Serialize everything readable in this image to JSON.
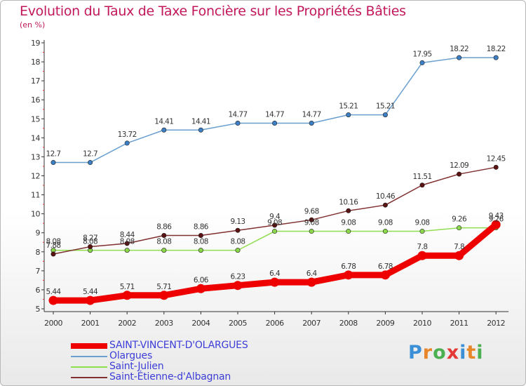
{
  "title": "Evolution du Taux de Taxe Foncière sur les Propriétés Bâties",
  "subtitle": "(en %)",
  "logo": {
    "text": "Proxiti",
    "letters": [
      "P",
      "r",
      "o",
      "x",
      "i",
      "t",
      "i"
    ],
    "colors": [
      "#3a8fd6",
      "#e8872a",
      "#4caf50",
      "#e53935",
      "#3a8fd6",
      "#e8872a",
      "#4caf50"
    ]
  },
  "chart_data": {
    "type": "line",
    "x": [
      "2000",
      "2001",
      "2002",
      "2003",
      "2004",
      "2005",
      "2006",
      "2007",
      "2008",
      "2009",
      "2010",
      "2011",
      "2012"
    ],
    "ylim": [
      5,
      19
    ],
    "yticks": [
      5,
      6,
      7,
      8,
      9,
      10,
      11,
      12,
      13,
      14,
      15,
      16,
      17,
      18,
      19
    ],
    "grid": false,
    "legend_position": "bottom-left",
    "series": [
      {
        "name": "SAINT-VINCENT-D'OLARGUES",
        "color": "#ee0000",
        "values": [
          5.44,
          5.44,
          5.71,
          5.71,
          6.06,
          6.23,
          6.4,
          6.4,
          6.78,
          6.78,
          7.8,
          7.8,
          9.43
        ],
        "labels": [
          "5.44",
          "5.44",
          "5.71",
          "5.71",
          "6.06",
          "6.23",
          "6.4",
          "6.4",
          "6.78",
          "6.78",
          "7.8",
          "7.8",
          "9.43"
        ]
      },
      {
        "name": "Olargues",
        "color": "#6a9fd0",
        "values": [
          12.7,
          12.7,
          13.72,
          14.41,
          14.41,
          14.77,
          14.77,
          14.77,
          15.21,
          15.21,
          17.95,
          18.22,
          18.22
        ],
        "labels": [
          "12.7",
          "12.7",
          "13.72",
          "14.41",
          "14.41",
          "14.77",
          "14.77",
          "14.77",
          "15.21",
          "15.21",
          "17.95",
          "18.22",
          "18.22"
        ]
      },
      {
        "name": "Saint-Julien",
        "color": "#90dd50",
        "values": [
          8.08,
          8.08,
          8.08,
          8.08,
          8.08,
          8.08,
          9.08,
          9.08,
          9.08,
          9.08,
          9.08,
          9.26,
          9.26
        ],
        "labels": [
          "8.08",
          "8.08",
          "8.08",
          "8.08",
          "8.08",
          "8.08",
          "9.08",
          "9.08",
          "9.08",
          "9.08",
          "9.08",
          "9.26",
          "9.26"
        ]
      },
      {
        "name": "Saint-Étienne-d'Albagnan",
        "color": "#803030",
        "values": [
          7.88,
          8.27,
          8.44,
          8.86,
          8.86,
          9.13,
          9.4,
          9.68,
          10.16,
          10.46,
          11.51,
          12.09,
          12.45
        ],
        "labels": [
          "7.88",
          "8.27",
          "8.44",
          "8.86",
          "8.86",
          "9.13",
          "9.4",
          "9.68",
          "10.16",
          "10.46",
          "11.51",
          "12.09",
          "12.45"
        ]
      }
    ]
  }
}
